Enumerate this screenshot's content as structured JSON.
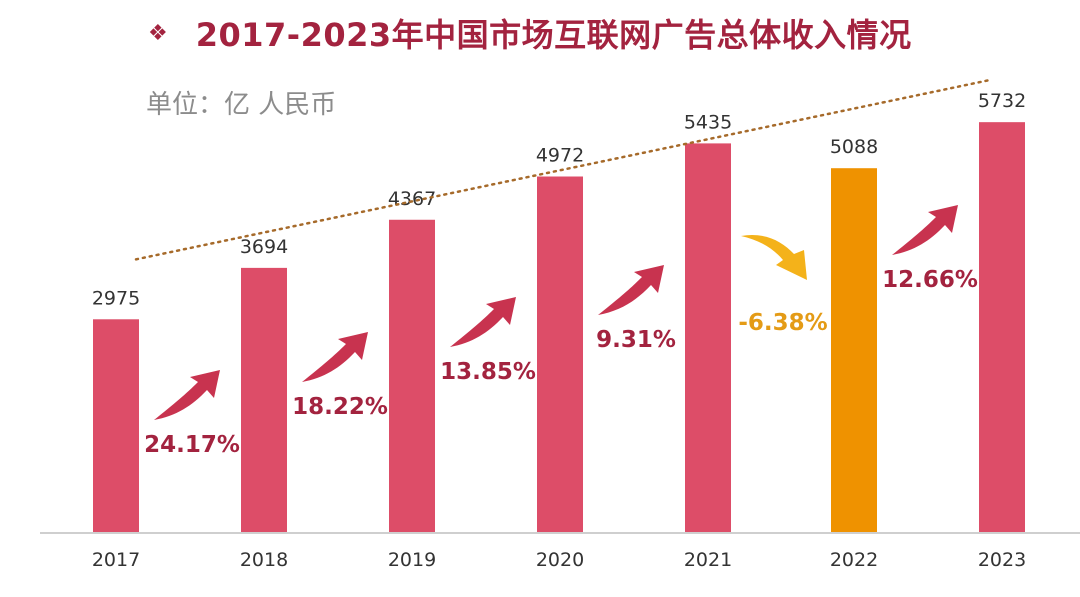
{
  "title": "2017-2023年中国市场互联网广告总体收入情况",
  "bullet_glyph": "❖",
  "unit_label": "单位：亿 人民币",
  "colors": {
    "bar": "#dd4d68",
    "bar_highlight": "#ef9200",
    "growth_text": "#a3233f",
    "decline_text": "#e49b16",
    "arrow_up": "#c8334f",
    "arrow_down": "#f4b21a",
    "trendline": "#a66a2a",
    "axis": "#bfbfbf",
    "label": "#333333"
  },
  "chart_data": {
    "type": "bar",
    "categories": [
      "2017",
      "2018",
      "2019",
      "2020",
      "2021",
      "2022",
      "2023"
    ],
    "values": [
      2975,
      3694,
      4367,
      4972,
      5435,
      5088,
      5732
    ],
    "highlight_index": 5,
    "growth_rates": [
      "24.17%",
      "18.22%",
      "13.85%",
      "9.31%",
      "-6.38%",
      "12.66%"
    ],
    "ylim": [
      0,
      6000
    ],
    "trendline": "linear",
    "grid": false,
    "legend": "none"
  }
}
